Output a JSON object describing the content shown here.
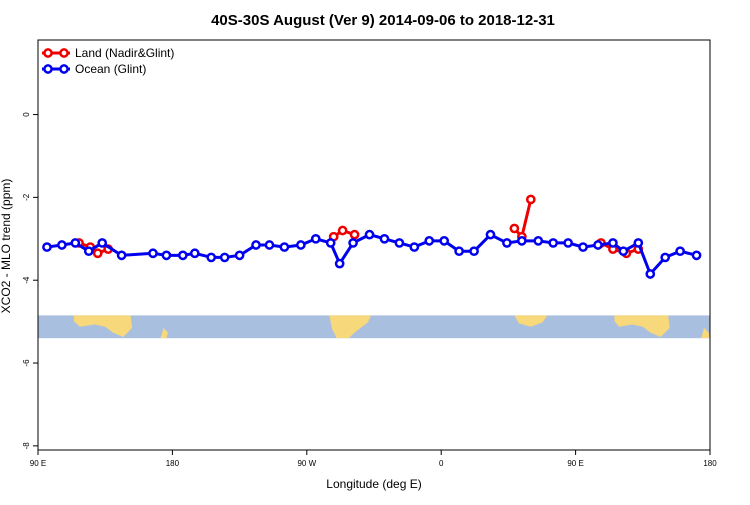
{
  "chart_data": {
    "type": "line",
    "title": "40S-30S August (Ver 9)   2014-09-06 to 2018-12-31",
    "xlabel": "Longitude (deg E)",
    "ylabel": "XCO2 - MLO trend (ppm)",
    "xlim": [
      90,
      540
    ],
    "ylim": [
      -8.1,
      1.8
    ],
    "x_ticks": [
      {
        "value": 90,
        "label": "90 E"
      },
      {
        "value": 180,
        "label": "180"
      },
      {
        "value": 270,
        "label": "90 W"
      },
      {
        "value": 360,
        "label": "0"
      },
      {
        "value": 450,
        "label": "90 E"
      },
      {
        "value": 540,
        "label": "180"
      }
    ],
    "y_ticks": [
      {
        "value": 0,
        "label": "0"
      },
      {
        "value": -2,
        "label": "-2"
      },
      {
        "value": -4,
        "label": "-4"
      },
      {
        "value": -6,
        "label": "-6"
      },
      {
        "value": -8,
        "label": "-8"
      }
    ],
    "legend_position": "top-left",
    "series": [
      {
        "name": "Land (Nadir&Glint)",
        "color": "#ee0000",
        "segments": [
          [
            [
              117.5,
              -3.1
            ],
            [
              125,
              -3.2
            ],
            [
              130,
              -3.35
            ],
            [
              137,
              -3.25
            ]
          ],
          [
            [
              288,
              -2.95
            ],
            [
              294,
              -2.8
            ],
            [
              302,
              -2.9
            ]
          ],
          [
            [
              409,
              -2.75
            ],
            [
              414,
              -2.95
            ],
            [
              420,
              -2.05
            ]
          ],
          [
            [
              467,
              -3.1
            ],
            [
              475,
              -3.25
            ],
            [
              484,
              -3.35
            ],
            [
              492,
              -3.25
            ]
          ]
        ]
      },
      {
        "name": "Ocean (Glint)",
        "color": "#0000ee",
        "segments": [
          [
            [
              96,
              -3.2
            ],
            [
              106,
              -3.15
            ],
            [
              115,
              -3.1
            ],
            [
              124,
              -3.3
            ],
            [
              133,
              -3.1
            ],
            [
              146,
              -3.4
            ],
            [
              167,
              -3.35
            ],
            [
              176,
              -3.4
            ],
            [
              187,
              -3.4
            ],
            [
              195,
              -3.35
            ],
            [
              206,
              -3.45
            ],
            [
              215,
              -3.45
            ],
            [
              225,
              -3.4
            ],
            [
              236,
              -3.15
            ],
            [
              245,
              -3.15
            ],
            [
              255,
              -3.2
            ],
            [
              266,
              -3.15
            ],
            [
              276,
              -3.0
            ],
            [
              286,
              -3.1
            ],
            [
              292,
              -3.6
            ],
            [
              301,
              -3.1
            ],
            [
              312,
              -2.9
            ],
            [
              322,
              -3.0
            ],
            [
              332,
              -3.1
            ],
            [
              342,
              -3.2
            ],
            [
              352,
              -3.05
            ],
            [
              362,
              -3.05
            ],
            [
              372,
              -3.3
            ],
            [
              382,
              -3.3
            ],
            [
              393,
              -2.9
            ],
            [
              404,
              -3.1
            ],
            [
              414,
              -3.05
            ],
            [
              425,
              -3.05
            ],
            [
              435,
              -3.1
            ],
            [
              445,
              -3.1
            ],
            [
              455,
              -3.2
            ],
            [
              465,
              -3.15
            ],
            [
              475,
              -3.1
            ],
            [
              482,
              -3.3
            ],
            [
              492,
              -3.1
            ],
            [
              500,
              -3.85
            ],
            [
              510,
              -3.45
            ],
            [
              520,
              -3.3
            ],
            [
              531,
              -3.4
            ]
          ]
        ],
        "extra_points_note": ""
      }
    ]
  }
}
